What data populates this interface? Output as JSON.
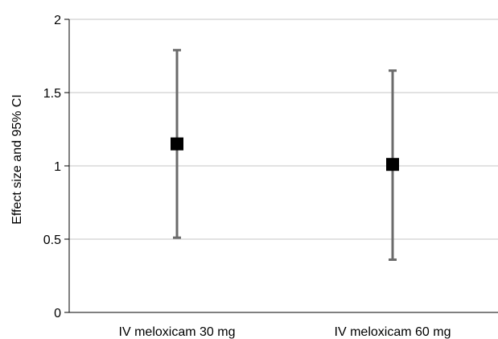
{
  "chart_data": {
    "type": "scatter",
    "title": "",
    "xlabel": "",
    "ylabel": "Effect size and 95% CI",
    "ylim": [
      0,
      2
    ],
    "yticks": [
      0,
      0.5,
      1,
      1.5,
      2
    ],
    "ytick_labels": [
      "0",
      "0.5",
      "1",
      "1.5",
      "2"
    ],
    "grid": true,
    "legend": "none",
    "categories": [
      "IV meloxicam 30 mg",
      "IV meloxicam 60 mg"
    ],
    "values": [
      1.15,
      1.01
    ],
    "ci_lower": [
      0.51,
      0.36
    ],
    "ci_upper": [
      1.79,
      1.65
    ],
    "colors": {
      "marker": "#000000",
      "error_bar": "#6b6b6b",
      "grid": "#d9d9d9",
      "axis": "#000000"
    }
  }
}
